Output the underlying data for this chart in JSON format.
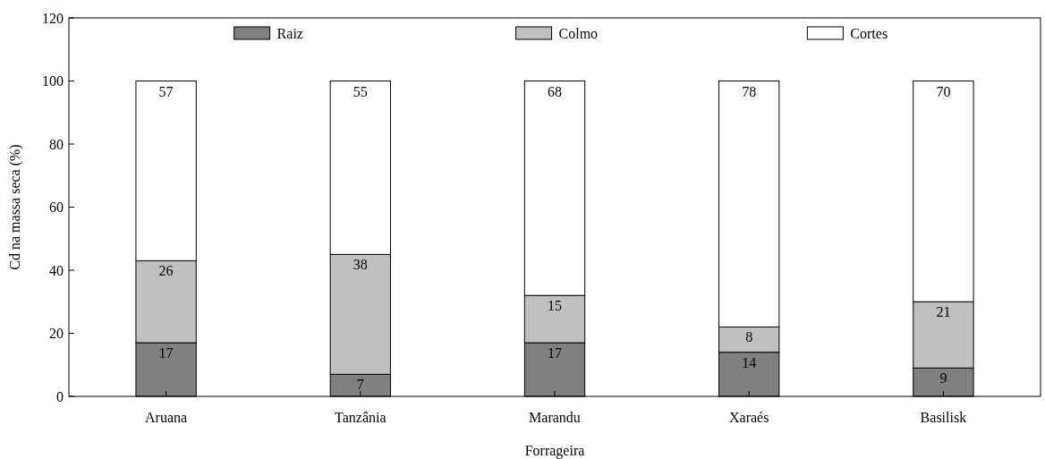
{
  "chart_data": {
    "type": "bar",
    "stacked": true,
    "xlabel": "Forrageira",
    "ylabel": "Cd na massa seca (%)",
    "categories": [
      "Aruana",
      "Tanzânia",
      "Marandu",
      "Xaraés",
      "Basilisk"
    ],
    "series": [
      {
        "name": "Raiz",
        "color": "#808080",
        "values": [
          17,
          7,
          17,
          14,
          9
        ]
      },
      {
        "name": "Colmo",
        "color": "#c0c0c0",
        "values": [
          26,
          38,
          15,
          8,
          21
        ]
      },
      {
        "name": "Cortes",
        "color": "#ffffff",
        "values": [
          57,
          55,
          68,
          78,
          70
        ]
      }
    ],
    "ylim": [
      0,
      120
    ],
    "yticks": [
      0,
      20,
      40,
      60,
      80,
      100,
      120
    ],
    "data_labels": true,
    "legend": "top",
    "grid": false
  }
}
